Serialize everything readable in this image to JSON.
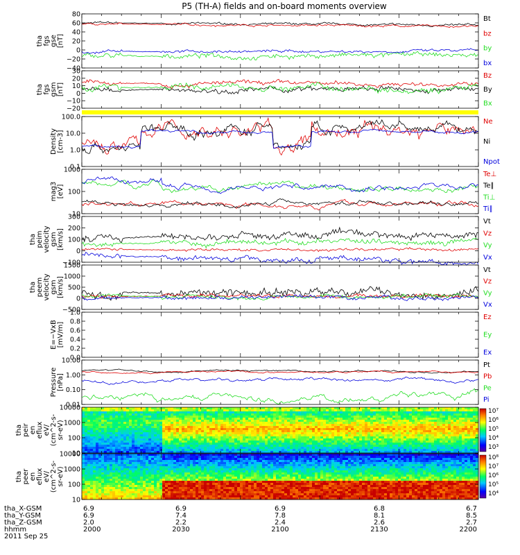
{
  "title": "P5 (TH-A) fields and on-board moments overview",
  "date_label": "2011 Sep 25",
  "colors": {
    "black": "#000000",
    "red": "#e00000",
    "green": "#22dd22",
    "blue": "#0000dd",
    "yellow": "#ffff00"
  },
  "chart_data": [
    {
      "type": "line",
      "panel": "tha_fgs_gse",
      "ylabel": [
        "tha",
        "fgs",
        "gse",
        "[nT]"
      ],
      "ylim": [
        -40,
        80
      ],
      "yticks": [
        "80",
        "60",
        "40",
        "20",
        "0",
        "−20",
        "−40"
      ],
      "series": [
        {
          "name": "Bt",
          "color": "#000000",
          "level": 60,
          "noise": 3,
          "trend": -6
        },
        {
          "name": "bz",
          "color": "#e00000",
          "level": 58,
          "noise": 3,
          "trend": -6
        },
        {
          "name": "by",
          "color": "#22dd22",
          "level": -14,
          "noise": 7,
          "trend": 2
        },
        {
          "name": "bx",
          "color": "#0000dd",
          "level": -4,
          "noise": 4,
          "trend": 2
        }
      ]
    },
    {
      "type": "line",
      "panel": "tha_fgs_gsm",
      "ylabel": [
        "tha",
        "fgs",
        "gsm",
        "[nT]"
      ],
      "ylim": [
        -25,
        30
      ],
      "yticks": [
        "30",
        "20",
        "10",
        "0",
        "−10",
        "−20"
      ],
      "series": [
        {
          "name": "Bz",
          "color": "#e00000",
          "level": 12,
          "noise": 4,
          "trend": -2
        },
        {
          "name": "By",
          "color": "#000000",
          "level": 2,
          "noise": 5,
          "trend": 0
        },
        {
          "name": "Bx",
          "color": "#22dd22",
          "level": 6,
          "noise": 6,
          "trend": -1
        }
      ]
    },
    {
      "type": "line",
      "panel": "density",
      "ylabel": [
        "Density",
        "[cm-3]"
      ],
      "log": true,
      "ylim": [
        0.1,
        100
      ],
      "yticks": [
        "100.0",
        "10.0",
        "1.0",
        "0.1"
      ],
      "series": [
        {
          "name": "Ne",
          "color": "#e00000",
          "level": 6,
          "noise": 0.25
        },
        {
          "name": "Ni",
          "color": "#000000",
          "level": 6,
          "noise": 0.2
        },
        {
          "name": "Npot",
          "color": "#0000dd",
          "level": 5,
          "noise": 0.05
        }
      ]
    },
    {
      "type": "line",
      "panel": "temperature",
      "ylabel": [
        "mag3",
        "[eV]"
      ],
      "log": true,
      "ylim": [
        10,
        5000
      ],
      "yticks": [
        "1000",
        "100",
        "10"
      ],
      "series": [
        {
          "name": "Te⊥",
          "color": "#e00000",
          "level": 40,
          "noise": 0.08
        },
        {
          "name": "Te∥",
          "color": "#000000",
          "level": 45,
          "noise": 0.08
        },
        {
          "name": "Ti⊥",
          "color": "#22dd22",
          "level": 700,
          "noise": 0.1
        },
        {
          "name": "Ti∥",
          "color": "#0000dd",
          "level": 900,
          "noise": 0.1
        }
      ]
    },
    {
      "type": "line",
      "panel": "tha_peim_velocity_gsm",
      "ylabel": [
        "tha",
        "peim",
        "velocity",
        "gsm",
        "[km/s]"
      ],
      "ylim": [
        -100,
        300
      ],
      "yticks": [
        "300",
        "200",
        "100",
        "0",
        "−100"
      ],
      "series": [
        {
          "name": "Vt",
          "color": "#000000",
          "level": 110,
          "noise": 40,
          "trend": 40
        },
        {
          "name": "Vz",
          "color": "#e00000",
          "level": 10,
          "noise": 15,
          "trend": 0
        },
        {
          "name": "Vy",
          "color": "#22dd22",
          "level": 60,
          "noise": 30,
          "trend": 30
        },
        {
          "name": "Vx",
          "color": "#0000dd",
          "level": -40,
          "noise": 30,
          "trend": -60
        }
      ]
    },
    {
      "type": "line",
      "panel": "tha_peem_velocity_gsm",
      "ylabel": [
        "tha",
        "peem",
        "velocity",
        "gsm",
        "[km/s]"
      ],
      "ylim": [
        -600,
        1500
      ],
      "yticks": [
        "1500",
        "1000",
        "500",
        "0",
        "−500"
      ],
      "series": [
        {
          "name": "Vt",
          "color": "#000000",
          "level": 200,
          "noise": 260,
          "trend": 0
        },
        {
          "name": "Vz",
          "color": "#e00000",
          "level": 20,
          "noise": 120,
          "trend": 0
        },
        {
          "name": "Vy",
          "color": "#22dd22",
          "level": 20,
          "noise": 120,
          "trend": 0
        },
        {
          "name": "Vx",
          "color": "#0000dd",
          "level": -60,
          "noise": 120,
          "trend": 0
        }
      ]
    },
    {
      "type": "line",
      "panel": "efield",
      "ylabel": [
        "E=−VxB",
        "[mV/m]"
      ],
      "ylim": [
        0,
        1
      ],
      "yticks": [
        "1.0",
        "0.8",
        "0.6",
        "0.4",
        "0.2",
        "0.0"
      ],
      "series": [
        {
          "name": "Ez",
          "color": "#e00000"
        },
        {
          "name": "Ey",
          "color": "#22dd22"
        },
        {
          "name": "Ex",
          "color": "#0000dd"
        }
      ]
    },
    {
      "type": "line",
      "panel": "pressure",
      "ylabel": [
        "Pressure",
        "[nPa]"
      ],
      "log": true,
      "ylim": [
        0.01,
        10
      ],
      "yticks": [
        "10.00",
        "1.00",
        "0.10",
        "0.01"
      ],
      "series": [
        {
          "name": "Pt",
          "color": "#000000",
          "level": 1.8,
          "noise": 0.03
        },
        {
          "name": "Pb",
          "color": "#e00000",
          "level": 1.5,
          "noise": 0.03
        },
        {
          "name": "Pe",
          "color": "#22dd22",
          "level": 0.03,
          "noise": 0.12
        },
        {
          "name": "Pi",
          "color": "#0000dd",
          "level": 0.4,
          "noise": 0.06
        }
      ]
    },
    {
      "type": "heatmap",
      "panel": "tha_peir_en_eflux",
      "ylabel": [
        "tha",
        "peir",
        "en",
        "eflux",
        "eV/",
        "(cm^2-s-",
        "sr-eV)"
      ],
      "log": true,
      "ylim": [
        10,
        20000
      ],
      "yticks": [
        "10000",
        "1000",
        "100",
        "10"
      ],
      "colorbar_ticks": [
        "10⁷",
        "10⁶",
        "10⁵",
        "10⁴",
        "10³"
      ]
    },
    {
      "type": "heatmap",
      "panel": "tha_peer_en_eflux",
      "ylabel": [
        "tha",
        "peer",
        "en",
        "eflux",
        "eV/",
        "(cm^2-s-",
        "sr-eV)"
      ],
      "log": true,
      "ylim": [
        10,
        20000
      ],
      "yticks": [
        "10000",
        "1000",
        "100",
        "10"
      ],
      "colorbar_ticks": [
        "10⁸",
        "10⁷",
        "10⁶",
        "10⁵",
        "10⁴"
      ]
    }
  ],
  "xaxis": {
    "row_labels": [
      "tha_X-GSM",
      "tha_Y-GSM",
      "tha_Z-GSM",
      "hhmm"
    ],
    "columns": [
      {
        "x": "6.9",
        "y": "6.9",
        "z": "2.0",
        "t": "2000"
      },
      {
        "x": "6.9",
        "y": "7.4",
        "z": "2.2",
        "t": "2030"
      },
      {
        "x": "6.9",
        "y": "7.8",
        "z": "2.4",
        "t": "2100"
      },
      {
        "x": "6.8",
        "y": "8.1",
        "z": "2.6",
        "t": "2130"
      },
      {
        "x": "6.7",
        "y": "8.5",
        "z": "2.7",
        "t": "2200"
      }
    ]
  }
}
